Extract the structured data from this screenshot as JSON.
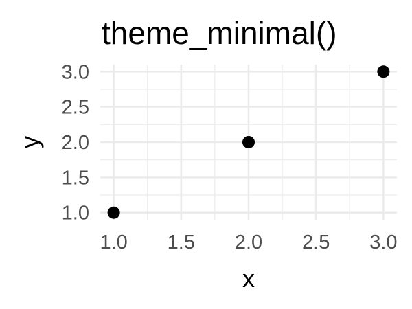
{
  "chart_data": {
    "type": "scatter",
    "title": "theme_minimal()",
    "xlabel": "x",
    "ylabel": "y",
    "xlim": [
      1.0,
      3.0
    ],
    "ylim": [
      1.0,
      3.0
    ],
    "x_ticks": [
      "1.0",
      "1.5",
      "2.0",
      "2.5",
      "3.0"
    ],
    "y_ticks": [
      "1.0",
      "1.5",
      "2.0",
      "2.5",
      "3.0"
    ],
    "x_tick_values": [
      1.0,
      1.5,
      2.0,
      2.5,
      3.0
    ],
    "y_tick_values": [
      1.0,
      1.5,
      2.0,
      2.5,
      3.0
    ],
    "series": [
      {
        "x": [
          1,
          2,
          3
        ],
        "y": [
          1,
          2,
          3
        ]
      }
    ],
    "grid": true,
    "legend": "none",
    "point_color": "#000000",
    "grid_color": "#ebebeb",
    "tick_label_color": "#4d4d4d",
    "background_color": "#ffffff"
  }
}
